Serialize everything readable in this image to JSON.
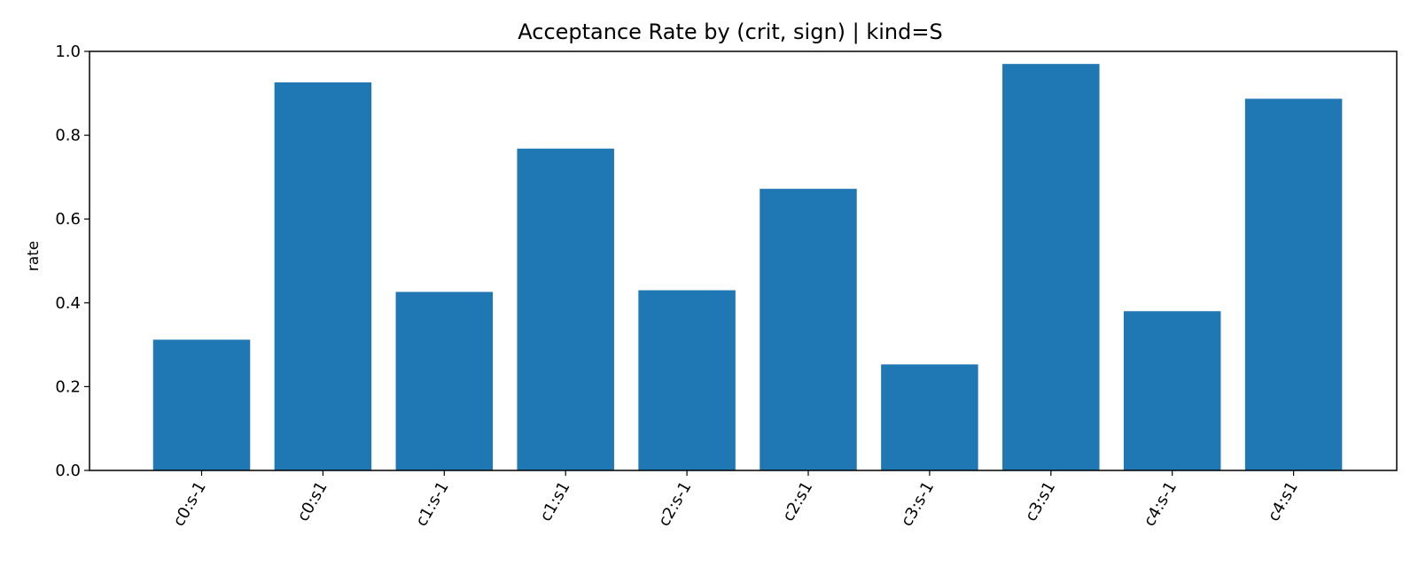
{
  "chart_data": {
    "type": "bar",
    "title": "Acceptance Rate by (crit, sign) | kind=S",
    "xlabel": "",
    "ylabel": "rate",
    "categories": [
      "c0:s-1",
      "c0:s1",
      "c1:s-1",
      "c1:s1",
      "c2:s-1",
      "c2:s1",
      "c3:s-1",
      "c3:s1",
      "c4:s-1",
      "c4:s1"
    ],
    "values": [
      0.312,
      0.926,
      0.426,
      0.768,
      0.43,
      0.672,
      0.253,
      0.97,
      0.38,
      0.887
    ],
    "ylim": [
      0,
      1.0
    ],
    "yticks": [
      "0.0",
      "0.2",
      "0.4",
      "0.6",
      "0.8",
      "1.0"
    ],
    "bar_color": "#1f77b4",
    "grid": false,
    "legend": false
  }
}
